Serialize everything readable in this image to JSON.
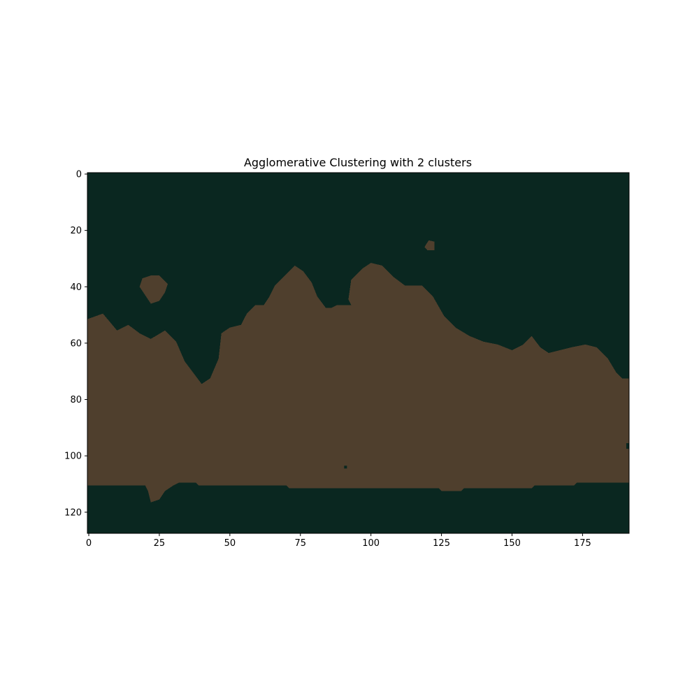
{
  "chart_data": {
    "type": "heatmap",
    "title": "Agglomerative Clustering with 2 clusters",
    "xlabel": "",
    "ylabel": "",
    "image_width": 192,
    "image_height": 128,
    "xlim": [
      -0.5,
      191.5
    ],
    "ylim": [
      127.5,
      -0.5
    ],
    "xticks": [
      0,
      25,
      50,
      75,
      100,
      125,
      150,
      175
    ],
    "yticks": [
      0,
      20,
      40,
      60,
      80,
      100,
      120
    ],
    "grid": false,
    "legend": "none",
    "colors": {
      "background_cluster": "#0a2720",
      "foreground_cluster": "#4f3f2d"
    },
    "clusters": [
      {
        "label": 0,
        "color": "#0a2720",
        "region": "sky and bottom band"
      },
      {
        "label": 1,
        "color": "#4f3f2d",
        "region": "central land mass"
      }
    ],
    "foreground_top_profile": [
      [
        0,
        52
      ],
      [
        5,
        50
      ],
      [
        10,
        56
      ],
      [
        14,
        54
      ],
      [
        18,
        57
      ],
      [
        22,
        59
      ],
      [
        27,
        56
      ],
      [
        31,
        60
      ],
      [
        34,
        67
      ],
      [
        37,
        71
      ],
      [
        40,
        75
      ],
      [
        43,
        73
      ],
      [
        46,
        66
      ],
      [
        47,
        57
      ],
      [
        50,
        55
      ],
      [
        54,
        54
      ],
      [
        56,
        50
      ],
      [
        59,
        47
      ],
      [
        62,
        47
      ],
      [
        64,
        44
      ],
      [
        66,
        40
      ],
      [
        70,
        36
      ],
      [
        73,
        33
      ],
      [
        76,
        35
      ],
      [
        79,
        39
      ],
      [
        81,
        44
      ],
      [
        84,
        48
      ],
      [
        86,
        48
      ],
      [
        88,
        47
      ],
      [
        93,
        47
      ],
      [
        92,
        45
      ],
      [
        93,
        38
      ],
      [
        97,
        34
      ],
      [
        100,
        32
      ],
      [
        104,
        33
      ],
      [
        108,
        37
      ],
      [
        112,
        40
      ],
      [
        118,
        40
      ],
      [
        122,
        44
      ],
      [
        126,
        51
      ],
      [
        130,
        55
      ],
      [
        135,
        58
      ],
      [
        140,
        60
      ],
      [
        145,
        61
      ],
      [
        150,
        63
      ],
      [
        154,
        61
      ],
      [
        157,
        58
      ],
      [
        160,
        62
      ],
      [
        163,
        64
      ],
      [
        167,
        63
      ],
      [
        171,
        62
      ],
      [
        176,
        61
      ],
      [
        180,
        62
      ],
      [
        184,
        66
      ],
      [
        187,
        71
      ],
      [
        189,
        73
      ],
      [
        191,
        73
      ]
    ],
    "foreground_bottom_profile": [
      [
        0,
        110
      ],
      [
        20,
        110
      ],
      [
        21,
        112
      ],
      [
        22,
        116
      ],
      [
        25,
        115
      ],
      [
        27,
        112
      ],
      [
        30,
        110
      ],
      [
        32,
        109
      ],
      [
        38,
        109
      ],
      [
        39,
        110
      ],
      [
        70,
        110
      ],
      [
        71,
        111
      ],
      [
        124,
        111
      ],
      [
        125,
        112
      ],
      [
        132,
        112
      ],
      [
        133,
        111
      ],
      [
        157,
        111
      ],
      [
        158,
        110
      ],
      [
        172,
        110
      ],
      [
        173,
        109
      ],
      [
        191,
        109
      ]
    ],
    "islands": [
      {
        "color": "#4f3f2d",
        "outline": [
          [
            19,
            37
          ],
          [
            22,
            36
          ],
          [
            25,
            36
          ],
          [
            28,
            39
          ],
          [
            27,
            42
          ],
          [
            25,
            45
          ],
          [
            22,
            46
          ],
          [
            20,
            43
          ],
          [
            18,
            40
          ]
        ]
      },
      {
        "color": "#4f3f2d",
        "outline": [
          [
            119.5,
            25
          ],
          [
            120.5,
            23.5
          ],
          [
            122.5,
            24
          ],
          [
            122.5,
            27
          ],
          [
            120,
            27
          ],
          [
            119,
            26
          ]
        ]
      }
    ],
    "specks": [
      {
        "x": 91,
        "y": 104,
        "color": "#0a2720"
      },
      {
        "x": 191,
        "y": 96,
        "color": "#0a2720"
      },
      {
        "x": 191,
        "y": 97,
        "color": "#0a2720"
      }
    ]
  }
}
